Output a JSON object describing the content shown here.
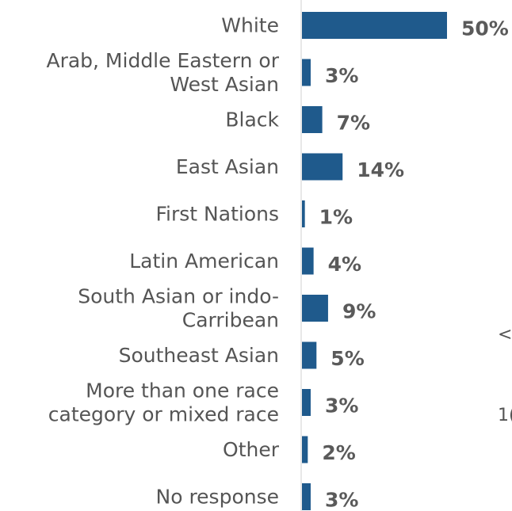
{
  "chart_data": {
    "type": "bar",
    "orientation": "horizontal",
    "title": "",
    "xlabel": "",
    "ylabel": "",
    "categories": [
      [
        "White"
      ],
      [
        "Arab, Middle Eastern or",
        "West Asian"
      ],
      [
        "Black"
      ],
      [
        "East Asian"
      ],
      [
        "First Nations"
      ],
      [
        "Latin American"
      ],
      [
        "South Asian or indo-",
        "Carribean"
      ],
      [
        "Southeast Asian"
      ],
      [
        "More than one race",
        "category or mixed race"
      ],
      [
        "Other"
      ],
      [
        "No response"
      ]
    ],
    "values": [
      50,
      3,
      7,
      14,
      1,
      4,
      9,
      5,
      3,
      2,
      3
    ],
    "value_labels": [
      "50%",
      "3%",
      "7%",
      "14%",
      "1%",
      "4%",
      "9%",
      "5%",
      "3%",
      "2%",
      "3%"
    ],
    "xlim": [
      0,
      50
    ],
    "grid": false,
    "legend": "none",
    "colors": {
      "bar": "#1f5a8c",
      "category_text": "#555555",
      "value_text": "#5a5a5a",
      "axis_line": "#d0d0d0"
    }
  },
  "clipped_text": {
    "partial_1": "<",
    "partial_2": "1("
  }
}
